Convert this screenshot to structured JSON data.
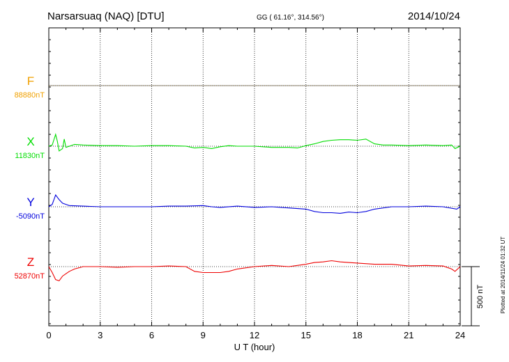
{
  "header": {
    "station": "Narsarsuaq (NAQ)  [DTU]",
    "coords": "GG ( 61.16°, 314.56°)",
    "date": "2014/10/24"
  },
  "footer_note": "Plotted at 2014/11/24 01:32 UT",
  "scale_label": "500 nT",
  "chart_data": {
    "type": "line",
    "xlabel": "U T (hour)",
    "xlim": [
      0,
      24
    ],
    "xticks": [
      0,
      3,
      6,
      9,
      12,
      15,
      18,
      21,
      24
    ],
    "grid": true,
    "scale_bar_nT": 500,
    "series": [
      {
        "name": "F",
        "baseline_label": "88880nT",
        "color": "#f0a000",
        "x": [
          0,
          24
        ],
        "y": [
          0,
          0
        ]
      },
      {
        "name": "X",
        "baseline_label": "11830nT",
        "color": "#00dd00",
        "x": [
          0,
          0.2,
          0.4,
          0.5,
          0.6,
          0.8,
          0.9,
          1.0,
          1.2,
          1.5,
          2,
          3,
          4,
          5,
          6,
          7,
          8,
          8.5,
          9,
          9.5,
          10,
          10.5,
          11,
          12,
          13,
          14,
          14.5,
          15,
          15.5,
          16,
          16.5,
          17,
          17.5,
          18,
          18.5,
          19,
          19.5,
          20,
          21,
          22,
          23,
          23.5,
          23.7,
          24
        ],
        "y": [
          0,
          10,
          100,
          40,
          -40,
          -20,
          60,
          -10,
          0,
          15,
          10,
          5,
          5,
          0,
          5,
          5,
          0,
          -15,
          -10,
          -20,
          -5,
          5,
          0,
          0,
          -10,
          -10,
          -15,
          5,
          20,
          40,
          50,
          55,
          55,
          50,
          60,
          20,
          10,
          10,
          5,
          10,
          5,
          10,
          -20,
          0
        ]
      },
      {
        "name": "Y",
        "baseline_label": "-5090nT",
        "color": "#0000dd",
        "x": [
          0,
          0.2,
          0.4,
          0.6,
          0.8,
          1.0,
          1.2,
          2,
          3,
          4,
          5,
          6,
          7,
          8,
          9,
          9.5,
          10,
          11,
          12,
          13,
          14,
          15,
          15.5,
          16,
          16.5,
          17,
          17.5,
          18,
          18.5,
          19,
          20,
          21,
          22,
          23,
          23.8,
          24
        ],
        "y": [
          0,
          20,
          100,
          60,
          30,
          20,
          10,
          5,
          0,
          0,
          0,
          0,
          5,
          5,
          10,
          0,
          -5,
          5,
          -5,
          0,
          -10,
          -20,
          -40,
          -50,
          -50,
          -55,
          -45,
          -50,
          -40,
          -20,
          0,
          0,
          5,
          0,
          -20,
          0
        ]
      },
      {
        "name": "Z",
        "baseline_label": "52870nT",
        "color": "#ee0000",
        "x": [
          0,
          0.2,
          0.4,
          0.6,
          0.8,
          1.0,
          1.2,
          1.5,
          2,
          3,
          4,
          5,
          6,
          7,
          8,
          8.5,
          9,
          10,
          10.5,
          11,
          12,
          13,
          14,
          15,
          15.5,
          16,
          16.5,
          17,
          18,
          19,
          20,
          21,
          22,
          23,
          23.5,
          23.7,
          24
        ],
        "y": [
          0,
          -50,
          -110,
          -120,
          -80,
          -60,
          -40,
          -20,
          0,
          0,
          -5,
          0,
          0,
          5,
          0,
          -40,
          -50,
          -50,
          -40,
          -20,
          0,
          10,
          0,
          20,
          35,
          40,
          50,
          40,
          30,
          20,
          20,
          5,
          10,
          5,
          -20,
          -40,
          0
        ]
      }
    ]
  }
}
